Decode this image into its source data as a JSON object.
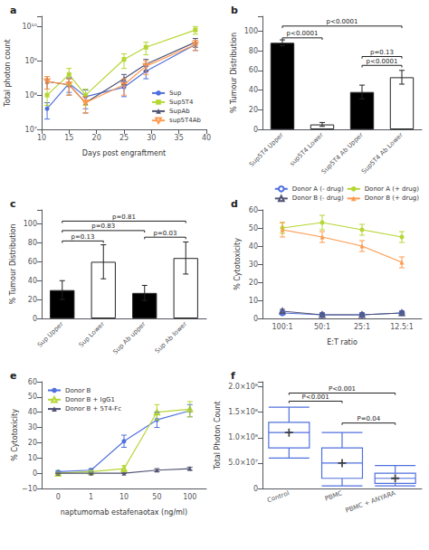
{
  "chart_data": [
    {
      "type": "line",
      "title": "a",
      "x": [
        11,
        15,
        18,
        25,
        29,
        38
      ],
      "xlabel": "Days post engraftment",
      "ylabel": "Total photon count",
      "xlim": [
        10,
        40
      ],
      "xticks": [
        10,
        15,
        20,
        25,
        30,
        35,
        40
      ],
      "ylim": [
        10000000.0,
        20000000000.0
      ],
      "yticks": [
        {
          "value": 10000000.0,
          "label": "10⁷"
        },
        {
          "value": 100000000.0,
          "label": "10⁸"
        },
        {
          "value": 1000000000.0,
          "label": "10⁹"
        },
        {
          "value": 10000000000.0,
          "label": "10¹⁰"
        }
      ],
      "log": "y",
      "grid": false,
      "legend": "lower right",
      "series": [
        {
          "name": "Sup",
          "marker": "circle",
          "values": [
            40000000.0,
            220000000.0,
            90000000.0,
            170000000.0,
            500000000.0,
            3000000000.0
          ],
          "errors": [
            20000000.0,
            100000000.0,
            50000000.0,
            80000000.0,
            200000000.0,
            1000000000.0
          ]
        },
        {
          "name": "Sup5T4",
          "marker": "square",
          "values": [
            100000000.0,
            400000000.0,
            100000000.0,
            1100000000.0,
            2500000000.0,
            8000000000.0
          ],
          "errors": [
            50000000.0,
            200000000.0,
            50000000.0,
            500000000.0,
            1000000000.0,
            2000000000.0
          ]
        },
        {
          "name": "SupAb",
          "marker": "triangle",
          "values": [
            250000000.0,
            200000000.0,
            60000000.0,
            300000000.0,
            800000000.0,
            3500000000.0
          ],
          "errors": [
            100000000.0,
            100000000.0,
            30000000.0,
            100000000.0,
            300000000.0,
            1000000000.0
          ]
        },
        {
          "name": "sup5T4Ab",
          "marker": "triangle-down-open",
          "values": [
            250000000.0,
            200000000.0,
            60000000.0,
            200000000.0,
            700000000.0,
            3000000000.0
          ],
          "errors": [
            100000000.0,
            100000000.0,
            30000000.0,
            100000000.0,
            300000000.0,
            1000000000.0
          ]
        }
      ]
    },
    {
      "type": "bar",
      "title": "b",
      "categories": [
        "Sup5T4 Upper",
        "sup5T4 Lower",
        "Sup5T4 Ab Upper",
        "Sup5T4 Ab Lower"
      ],
      "values": [
        88,
        5,
        38,
        53
      ],
      "errors": [
        3,
        2,
        7,
        7
      ],
      "colors": [
        "black",
        "white",
        "black",
        "white"
      ],
      "ylabel": "% Tumour Distribution",
      "ylim": [
        0,
        115
      ],
      "yticks": [
        0,
        20,
        40,
        60,
        80,
        100
      ],
      "grid": false,
      "annotations": [
        {
          "text": "p<0.0001",
          "from": "Sup5T4 Upper",
          "to": "sup5T4 Lower",
          "y": 91
        },
        {
          "text": "p<0.0001",
          "from": "Sup5T4 Ab Upper",
          "to": "Sup5T4 Ab Lower",
          "y": 63
        },
        {
          "text": "p=0.13",
          "from": "Sup5T4 Ab Upper",
          "to": "Sup5T4 Ab Lower",
          "y": 72
        },
        {
          "text": "p<0.0001",
          "from": "Sup5T4 Upper",
          "to": "Sup5T4 Ab Lower",
          "y": 103
        }
      ]
    },
    {
      "type": "bar",
      "title": "c",
      "categories": [
        "Sup Upper",
        "Sup Lower",
        "Sup Ab upper",
        "Sup Ab lower"
      ],
      "values": [
        30,
        60,
        27,
        64
      ],
      "errors": [
        10,
        18,
        8,
        17
      ],
      "colors": [
        "black",
        "white",
        "black",
        "white"
      ],
      "ylabel": "% Tumour Distribution",
      "ylim": [
        0,
        115
      ],
      "yticks": [
        0,
        20,
        40,
        60,
        80,
        100
      ],
      "grid": false,
      "annotations": [
        {
          "text": "p=0.13",
          "from": "Sup Upper",
          "to": "Sup Lower",
          "y": 80
        },
        {
          "text": "p=0.03",
          "from": "Sup Ab upper",
          "to": "Sup Ab lower",
          "y": 84
        },
        {
          "text": "p=0.83",
          "from": "Sup Upper",
          "to": "Sup Ab upper",
          "y": 91
        },
        {
          "text": "p=0.81",
          "from": "Sup Upper",
          "to": "Sup Ab lower",
          "y": 101
        }
      ]
    },
    {
      "type": "line",
      "title": "d",
      "categories": [
        "100:1",
        "50:1",
        "25:1",
        "12.5:1"
      ],
      "xlabel": "E:T ratio",
      "ylabel": "% Cytotoxicity",
      "ylim": [
        0,
        60
      ],
      "yticks": [
        0,
        10,
        20,
        30,
        40,
        50,
        60
      ],
      "grid": false,
      "legend": "upper right",
      "series": [
        {
          "name": "Donor A (- drug)",
          "marker": "circle-open",
          "values": [
            3,
            2,
            2,
            3
          ],
          "errors": [
            1,
            1,
            1,
            1
          ]
        },
        {
          "name": "Donor A (+ drug)",
          "marker": "circle",
          "values": [
            50,
            53,
            49,
            45
          ],
          "errors": [
            3,
            4,
            3,
            3
          ]
        },
        {
          "name": "Donor B (- drug)",
          "marker": "triangle-open",
          "values": [
            4,
            2,
            2,
            3
          ],
          "errors": [
            1,
            1,
            1,
            1
          ]
        },
        {
          "name": "Donor B (+ drug)",
          "marker": "triangle",
          "values": [
            49,
            45,
            40,
            31
          ],
          "errors": [
            4,
            3,
            3,
            3
          ]
        }
      ]
    },
    {
      "type": "line",
      "title": "e",
      "categories": [
        "0",
        "1",
        "10",
        "50",
        "100"
      ],
      "xlabel": "naptumomab estafenaotax (ng/ml)",
      "ylabel": "% Cytotoxicity",
      "ylim": [
        -10,
        60
      ],
      "yticks": [
        {
          "value": -10,
          "label": "−10"
        },
        0,
        10,
        20,
        30,
        40,
        50,
        60
      ],
      "grid": false,
      "legend": "upper left",
      "series": [
        {
          "name": "Donor B",
          "marker": "circle",
          "values": [
            1,
            2,
            21,
            35,
            41
          ],
          "errors": [
            0.5,
            1,
            4,
            5,
            4
          ]
        },
        {
          "name": "Donor B + IgG1",
          "marker": "triangle-open",
          "values": [
            0,
            1,
            3,
            40,
            42
          ],
          "errors": [
            0.5,
            0.5,
            2,
            5,
            5
          ]
        },
        {
          "name": "Donor B + 5T4-Fc",
          "marker": "triangle",
          "values": [
            0,
            0,
            0,
            2,
            3
          ],
          "errors": [
            0,
            0,
            0,
            1,
            1
          ]
        }
      ]
    },
    {
      "type": "box",
      "title": "f",
      "categories": [
        "Control",
        "PBMC",
        "PBMC + ANYARA"
      ],
      "whisker_low": [
        60000000.0,
        5000000.0,
        5000000.0
      ],
      "q1": [
        80000000.0,
        20000000.0,
        10000000.0
      ],
      "medians": [
        110000000.0,
        50000000.0,
        20000000.0
      ],
      "q3": [
        130000000.0,
        80000000.0,
        30000000.0
      ],
      "whisker_high": [
        160000000.0,
        110000000.0,
        45000000.0
      ],
      "means": [
        110000000.0,
        50000000.0,
        20000000.0
      ],
      "ylabel": "Total Photon Count",
      "ylim": [
        0,
        210000000.0
      ],
      "yticks": [
        0,
        {
          "value": 50000000.0,
          "label": "5.0×10⁷"
        },
        {
          "value": 100000000.0,
          "label": "1.0×10⁸"
        },
        {
          "value": 150000000.0,
          "label": "1.5×10⁸"
        },
        {
          "value": 200000000.0,
          "label": "2.0×10⁸"
        }
      ],
      "grid": false,
      "annotations": [
        {
          "text": "P<0.001",
          "from": "Control",
          "to": "PBMC",
          "y": 168000000.0
        },
        {
          "text": "P<0.001",
          "from": "Control",
          "to": "PBMC + ANYARA",
          "y": 184000000.0
        },
        {
          "text": "P=0.04",
          "from": "PBMC",
          "to": "PBMC + ANYARA",
          "y": 125000000.0
        }
      ]
    }
  ]
}
